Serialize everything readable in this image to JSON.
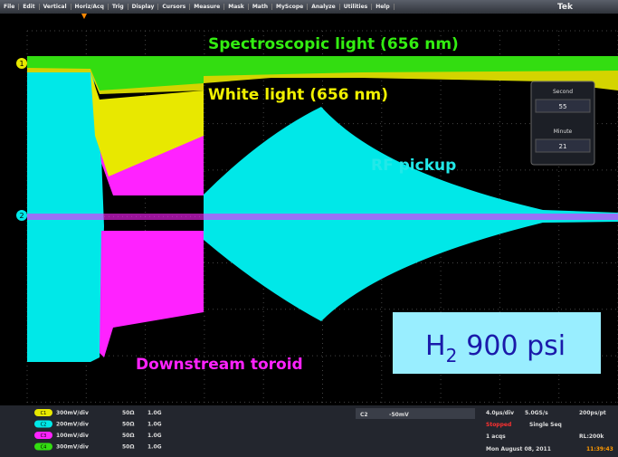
{
  "menu": {
    "items": [
      "File",
      "Edit",
      "Vertical",
      "Horiz/Acq",
      "Trig",
      "Display",
      "Cursors",
      "Measure",
      "Mask",
      "Math",
      "MyScope",
      "Analyze",
      "Utilities",
      "Help"
    ],
    "brand": "Tek"
  },
  "annotations": {
    "spectroscopic": "Spectroscopic light (656 nm)",
    "white": "White light (656 nm)",
    "rf": "RF pickup",
    "toroid": "Downstream toroid"
  },
  "label": {
    "main": "H",
    "sub": "2",
    "rest": "900 psi"
  },
  "timer": [
    {
      "label": "Second",
      "value": "55"
    },
    {
      "label": "Minute",
      "value": "21"
    }
  ],
  "markers": {
    "ch1": "1",
    "ch2": "2"
  },
  "channels": [
    {
      "id": "C1",
      "scale": "300mV/div",
      "impedance": "50Ω",
      "bandwidth": "1.0G"
    },
    {
      "id": "C2",
      "scale": "200mV/div",
      "impedance": "50Ω",
      "bandwidth": "1.0G"
    },
    {
      "id": "C3",
      "scale": "100mV/div",
      "impedance": "50Ω",
      "bandwidth": "1.0G"
    },
    {
      "id": "C4",
      "scale": "300mV/div",
      "impedance": "50Ω",
      "bandwidth": "1.0G"
    }
  ],
  "trigger": {
    "source": "C2",
    "level": "-50mV"
  },
  "acquisition": {
    "timebase": "4.0µs/div",
    "rate": "5.0GS/s",
    "resolution": "200ps/pt",
    "state": "Stopped",
    "mode": "Single Seq",
    "count": "1 acqs",
    "record": "RL:200k",
    "date": "Mon  August 08, 2011",
    "time": "11:39:43"
  }
}
